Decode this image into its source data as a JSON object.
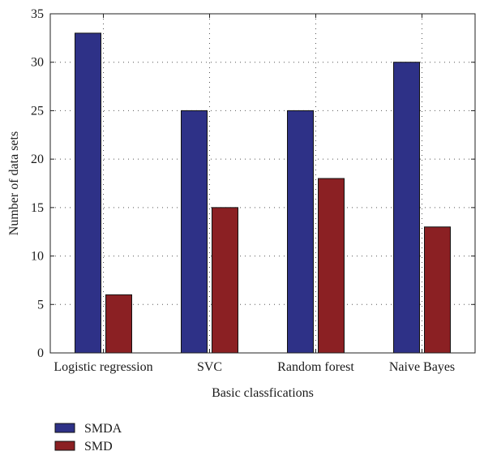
{
  "chart_data": {
    "type": "bar",
    "categories": [
      "Logistic regression",
      "SVC",
      "Random forest",
      "Naive Bayes"
    ],
    "series": [
      {
        "name": "SMDA",
        "values": [
          33,
          25,
          25,
          30
        ],
        "color": "#2e3187"
      },
      {
        "name": "SMD",
        "values": [
          6,
          15,
          18,
          13
        ],
        "color": "#8b2023"
      }
    ],
    "title": "",
    "xlabel": "Basic classfications",
    "ylabel": "Number of data sets",
    "ylim": [
      0,
      35
    ],
    "yticks": [
      0,
      5,
      10,
      15,
      20,
      25,
      30,
      35
    ],
    "grid": true,
    "grid_style": "dotted",
    "legend_position": "bottom-left, below axes"
  }
}
